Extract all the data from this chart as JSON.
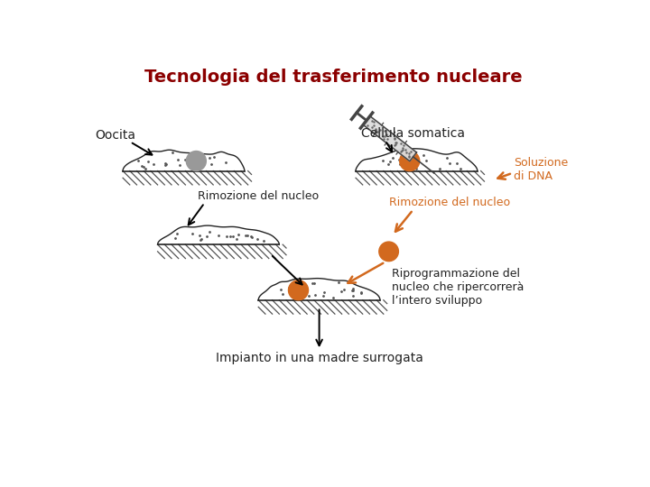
{
  "title": "Tecnologia del trasferimento nucleare",
  "title_color": "#8B0000",
  "title_fontsize": 14,
  "background_color": "#FFFFFF",
  "orange_color": "#D2691E",
  "black_color": "#222222",
  "gray_nucleus": "#999999",
  "labels": {
    "oocita": "Oocita",
    "cellula_somatica": "Cellula somatica",
    "soluzione_dna": "Soluzione\ndi DNA",
    "rimozione_left": "Rimozione del nucleo",
    "rimozione_right": "Rimozione del nucleo",
    "riprogrammazione": "Riprogrammazione del\nnucleo che ripercorrerà\nl’intero sviluppo",
    "impianto": "Impianto in una madre surrogata"
  }
}
